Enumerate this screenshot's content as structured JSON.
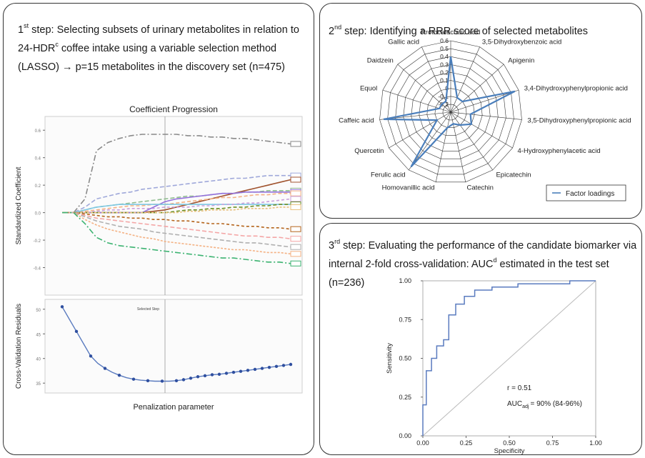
{
  "step1": {
    "num": "1",
    "sup": "st",
    "line1": " step: Selecting subsets of urinary metabolites in relation to",
    "line2_a": "24-HDR",
    "line2_sup": "c",
    "line2_b": " coffee intake using a variable selection method",
    "line3": "(LASSO) →  p=15 metabolites in the discovery set (n=475)"
  },
  "step2": {
    "num": "2",
    "sup": "nd",
    "text": " step: Identifying a RRR score of selected metabolites"
  },
  "step3": {
    "num": "3",
    "sup": "rd",
    "line1": " step: Evaluating the performance of the candidate biomarker via",
    "line2_a": "internal 2-fold cross-validation: AUC",
    "line2_sup": "d",
    "line2_b": " estimated in the test set",
    "line3": "(n=236)"
  },
  "chart_data": [
    {
      "type": "line",
      "title": "Coefficient Progression",
      "ylabel": "Standardized Coefficient",
      "yticks": [
        "-0.4",
        "-0.2",
        "0.0",
        "0.2",
        "0.4",
        "0.6"
      ],
      "ylim": [
        -0.6,
        0.7
      ],
      "selected_step_label": "Selected Step",
      "selected_step": 9,
      "steps": 20,
      "series": [
        {
          "values": [
            0,
            0,
            0.1,
            0.45,
            0.51,
            0.54,
            0.56,
            0.57,
            0.57,
            0.57,
            0.57,
            0.56,
            0.56,
            0.55,
            0.55,
            0.54,
            0.54,
            0.53,
            0.52,
            0.51,
            0.5
          ],
          "color": "#8a8a8a",
          "dash": "8,3,2,3"
        },
        {
          "values": [
            0,
            0,
            0.04,
            0.1,
            0.12,
            0.14,
            0.15,
            0.17,
            0.18,
            0.19,
            0.2,
            0.21,
            0.22,
            0.23,
            0.24,
            0.25,
            0.25,
            0.26,
            0.27,
            0.27,
            0.27
          ],
          "color": "#9fa8da",
          "dash": "6,3"
        },
        {
          "values": [
            0,
            0,
            0,
            0,
            0,
            0,
            0,
            0,
            0.01,
            0.02,
            0.04,
            0.06,
            0.08,
            0.1,
            0.12,
            0.14,
            0.16,
            0.18,
            0.2,
            0.22,
            0.24
          ],
          "color": "#a0522d",
          "dash": ""
        },
        {
          "values": [
            0,
            0,
            0.02,
            0.04,
            0.05,
            0.06,
            0.07,
            0.08,
            0.09,
            0.1,
            0.11,
            0.12,
            0.12,
            0.13,
            0.14,
            0.14,
            0.15,
            0.15,
            0.16,
            0.16,
            0.16
          ],
          "color": "#8fbc8f",
          "dash": "6,3"
        },
        {
          "values": [
            0,
            0,
            0,
            0,
            0,
            0,
            0,
            0,
            0.04,
            0.08,
            0.1,
            0.11,
            0.12,
            0.13,
            0.14,
            0.14,
            0.15,
            0.15,
            0.15,
            0.15,
            0.15
          ],
          "color": "#9370db",
          "dash": ""
        },
        {
          "values": [
            0,
            0,
            0.01,
            0.02,
            0.03,
            0.04,
            0.05,
            0.05,
            0.06,
            0.06,
            0.07,
            0.08,
            0.09,
            0.1,
            0.11,
            0.11,
            0.12,
            0.13,
            0.13,
            0.14,
            0.14
          ],
          "color": "#f4b183",
          "dash": "5,3"
        },
        {
          "values": [
            0,
            0,
            0.02,
            0.04,
            0.05,
            0.06,
            0.06,
            0.06,
            0.06,
            0.06,
            0.06,
            0.06,
            0.06,
            0.06,
            0.06,
            0.06,
            0.06,
            0.06,
            0.06,
            0.06,
            0.06
          ],
          "color": "#7ec8e3",
          "dash": ""
        },
        {
          "values": [
            0,
            0,
            0,
            0.01,
            0.02,
            0.02,
            0.03,
            0.03,
            0.03,
            0.04,
            0.04,
            0.04,
            0.05,
            0.05,
            0.06,
            0.06,
            0.07,
            0.07,
            0.08,
            0.09,
            0.1
          ],
          "color": "#c9a0dc",
          "dash": "4,3"
        },
        {
          "values": [
            0,
            0,
            0,
            0,
            0,
            0,
            0,
            0,
            0,
            0,
            0.01,
            0.02,
            0.02,
            0.03,
            0.03,
            0.04,
            0.04,
            0.05,
            0.05,
            0.06,
            0.06
          ],
          "color": "#6b8e23",
          "dash": "5,3"
        },
        {
          "values": [
            0,
            0,
            0,
            0,
            0,
            0,
            0,
            0,
            0,
            0,
            0,
            0.01,
            0.01,
            0.02,
            0.02,
            0.02,
            0.03,
            0.03,
            0.03,
            0.04,
            0.04
          ],
          "color": "#e8c07d",
          "dash": "3,2"
        },
        {
          "values": [
            0,
            0,
            -0.01,
            -0.02,
            -0.03,
            -0.03,
            -0.04,
            -0.04,
            -0.05,
            -0.05,
            -0.06,
            -0.06,
            -0.07,
            -0.08,
            -0.08,
            -0.09,
            -0.1,
            -0.1,
            -0.11,
            -0.11,
            -0.12
          ],
          "color": "#b5651d",
          "dash": "4,3"
        },
        {
          "values": [
            0,
            0,
            -0.02,
            -0.04,
            -0.05,
            -0.06,
            -0.07,
            -0.08,
            -0.09,
            -0.1,
            -0.11,
            -0.12,
            -0.13,
            -0.14,
            -0.15,
            -0.16,
            -0.17,
            -0.17,
            -0.18,
            -0.18,
            -0.19
          ],
          "color": "#f4a6a6",
          "dash": "6,3"
        },
        {
          "values": [
            0,
            0,
            -0.03,
            -0.06,
            -0.08,
            -0.1,
            -0.11,
            -0.12,
            -0.14,
            -0.15,
            -0.16,
            -0.17,
            -0.18,
            -0.19,
            -0.2,
            -0.21,
            -0.22,
            -0.22,
            -0.23,
            -0.24,
            -0.25
          ],
          "color": "#b0b0b0",
          "dash": "6,3"
        },
        {
          "values": [
            0,
            0,
            -0.05,
            -0.09,
            -0.12,
            -0.14,
            -0.16,
            -0.18,
            -0.19,
            -0.21,
            -0.22,
            -0.23,
            -0.24,
            -0.25,
            -0.26,
            -0.27,
            -0.27,
            -0.28,
            -0.29,
            -0.29,
            -0.3
          ],
          "color": "#f4b183",
          "dash": "3,2"
        },
        {
          "values": [
            0,
            0,
            -0.08,
            -0.18,
            -0.22,
            -0.24,
            -0.25,
            -0.26,
            -0.27,
            -0.28,
            -0.29,
            -0.3,
            -0.31,
            -0.32,
            -0.33,
            -0.33,
            -0.34,
            -0.35,
            -0.36,
            -0.36,
            -0.37
          ],
          "color": "#3cb371",
          "dash": "8,3,2,3"
        }
      ]
    },
    {
      "type": "line",
      "title": "",
      "xlabel": "Penalization parameter",
      "ylabel": "Cross-Validation Residuals",
      "yticks": [
        "35",
        "40",
        "45",
        "50"
      ],
      "ylim": [
        33,
        52
      ],
      "values": [
        50.5,
        48.0,
        45.5,
        43.0,
        40.5,
        39.0,
        38.0,
        37.2,
        36.6,
        36.1,
        35.8,
        35.6,
        35.5,
        35.4,
        35.4,
        35.4,
        35.5,
        35.7,
        36.0,
        36.3,
        36.5,
        36.7,
        36.8,
        37.0,
        37.2,
        37.4,
        37.6,
        37.8,
        38.0,
        38.2,
        38.4,
        38.6,
        38.8
      ]
    },
    {
      "type": "radar",
      "title": "",
      "axes": [
        "Protocatechuic acid",
        "3,5-Dihydroxybenzoic acid",
        "Apigenin",
        "3,4-Dihydroxyphenylpropionic acid",
        "3,5-Dihydroxyphenylpropionic acid",
        "4-Hydroxyphenylacetic acid",
        "Epicatechin",
        "Catechin",
        "Homovanillic acid",
        "Ferulic acid",
        "Quercetin",
        "Caffeic acid",
        "Equol",
        "Daidzein",
        "Gallic acid"
      ],
      "rticks": [
        "0.6",
        "0.5",
        "0.4",
        "0.3",
        "0.2",
        "0.1",
        "0",
        "-0.1",
        "-0.2"
      ],
      "rlim": [
        -0.3,
        0.6
      ],
      "legend": "Factor loadings",
      "series": [
        {
          "name": "Factor loadings",
          "values": [
            0.4,
            -0.1,
            -0.1,
            0.55,
            -0.05,
            0.0,
            -0.1,
            -0.15,
            -0.1,
            0.55,
            -0.1,
            0.55,
            -0.15,
            -0.15,
            -0.15
          ]
        }
      ]
    },
    {
      "type": "line",
      "title": "",
      "xlabel": "Specificity",
      "ylabel": "Sensitivity",
      "xticks": [
        "0.00",
        "0.25",
        "0.50",
        "0.75",
        "1.00"
      ],
      "yticks": [
        "0.00",
        "0.25",
        "0.50",
        "0.75",
        "1.00"
      ],
      "xlim": [
        0,
        1
      ],
      "ylim": [
        0,
        1
      ],
      "annotation_r": "r = 0.51",
      "annotation_auc": "AUC",
      "annotation_auc_sub": "adj",
      "annotation_auc_val": "= 90% (84-96%)",
      "roc": [
        [
          0,
          0
        ],
        [
          0,
          0.2
        ],
        [
          0.02,
          0.2
        ],
        [
          0.02,
          0.42
        ],
        [
          0.05,
          0.42
        ],
        [
          0.05,
          0.5
        ],
        [
          0.08,
          0.5
        ],
        [
          0.08,
          0.58
        ],
        [
          0.12,
          0.58
        ],
        [
          0.12,
          0.62
        ],
        [
          0.15,
          0.62
        ],
        [
          0.15,
          0.78
        ],
        [
          0.19,
          0.78
        ],
        [
          0.19,
          0.85
        ],
        [
          0.24,
          0.85
        ],
        [
          0.24,
          0.9
        ],
        [
          0.3,
          0.9
        ],
        [
          0.3,
          0.94
        ],
        [
          0.4,
          0.94
        ],
        [
          0.4,
          0.96
        ],
        [
          0.55,
          0.96
        ],
        [
          0.55,
          0.98
        ],
        [
          0.85,
          0.98
        ],
        [
          0.85,
          1.0
        ],
        [
          1.0,
          1.0
        ]
      ]
    }
  ]
}
